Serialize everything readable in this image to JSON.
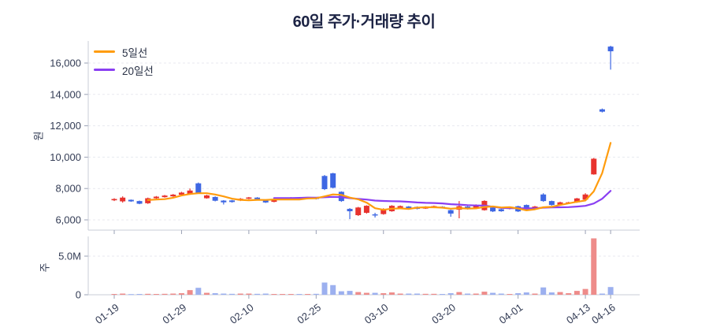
{
  "title": "60일 주가·거래량 추이",
  "legend": {
    "ma5": "5일선",
    "ma20": "20일선"
  },
  "axes": {
    "price_title": "원",
    "volume_title": "주",
    "price_tick_labels": [
      "6,000",
      "8,000",
      "10,000",
      "12,000",
      "14,000",
      "16,000"
    ],
    "volume_tick_labels": [
      "0",
      "5.0M"
    ],
    "x_tick_labels": [
      "01-19",
      "01-29",
      "02-10",
      "02-25",
      "03-10",
      "03-20",
      "04-01",
      "04-13",
      "04-16"
    ]
  },
  "colors": {
    "up": "#e8332e",
    "down": "#3e67e3",
    "vol_up": "#ee8c8a",
    "vol_down": "#9cb0ef",
    "ma5": "#ff9c0d",
    "ma20": "#8a3ff2",
    "grid": "#e8e9ef",
    "axis": "#c9cdd7",
    "tick": "#9aa0b4",
    "label": "#333c55",
    "title": "#1c2344"
  },
  "chart_data": [
    {
      "type": "candlestick",
      "title": "60일 주가·거래량 추이",
      "ylabel": "원",
      "ylim": [
        5350,
        17400
      ],
      "yticks": [
        6000,
        8000,
        10000,
        12000,
        14000,
        16000
      ],
      "ytick_labels": [
        "6,000",
        "8,000",
        "10,000",
        "12,000",
        "14,000",
        "16,000"
      ],
      "x_tick_positions": [
        0,
        8,
        16,
        24,
        32,
        40,
        48,
        56,
        59
      ],
      "x_tick_labels": [
        "01-19",
        "01-29",
        "02-10",
        "02-25",
        "03-10",
        "03-20",
        "04-01",
        "04-13",
        "04-16"
      ],
      "grid": "horizontal-dashed",
      "legend_position": "top-left-inside",
      "series": [
        {
          "name": "5일선",
          "derived": "moving-average-of-close",
          "window": 5,
          "color": "#ff9c0d"
        },
        {
          "name": "20일선",
          "derived": "moving-average-of-close",
          "window": 20,
          "color": "#8a3ff2"
        }
      ],
      "open": [
        7250,
        7180,
        7280,
        7200,
        7060,
        7380,
        7450,
        7500,
        7600,
        7640,
        8330,
        7380,
        7460,
        7230,
        7240,
        7230,
        7350,
        7420,
        7260,
        7150,
        7300,
        7370,
        7420,
        7350,
        7400,
        8800,
        8970,
        7790,
        6700,
        6300,
        6450,
        6350,
        6370,
        6550,
        6750,
        6850,
        6830,
        6720,
        6780,
        6840,
        6620,
        6650,
        6850,
        6780,
        6620,
        6790,
        6680,
        6700,
        6870,
        6950,
        6750,
        7620,
        7200,
        6950,
        7050,
        7120,
        7290,
        8900,
        13050,
        17050
      ],
      "high": [
        7380,
        7500,
        7300,
        7230,
        7420,
        7520,
        7590,
        7650,
        7790,
        8000,
        8380,
        7600,
        7500,
        7260,
        7270,
        7390,
        7460,
        7450,
        7290,
        7320,
        7390,
        7450,
        7440,
        7450,
        7430,
        8860,
        9000,
        7820,
        6750,
        6830,
        6930,
        6450,
        6740,
        6940,
        6920,
        6880,
        6860,
        6870,
        6910,
        6870,
        6650,
        7200,
        6880,
        6990,
        7250,
        6820,
        6710,
        6840,
        6900,
        6980,
        6890,
        7700,
        7230,
        7160,
        7150,
        7400,
        7700,
        9950,
        13100,
        17100
      ],
      "low": [
        7200,
        7100,
        7150,
        7000,
        7020,
        7340,
        7420,
        7470,
        7570,
        7600,
        7660,
        7350,
        7180,
        6980,
        7100,
        7200,
        7320,
        7300,
        7080,
        7120,
        7270,
        7340,
        7310,
        7320,
        7300,
        7900,
        8000,
        7150,
        6050,
        6250,
        6400,
        6150,
        6330,
        6520,
        6700,
        6690,
        6670,
        6700,
        6750,
        6730,
        6200,
        6100,
        6660,
        6750,
        6590,
        6500,
        6520,
        6670,
        6500,
        6580,
        6720,
        7150,
        6910,
        6920,
        7020,
        7090,
        7260,
        8880,
        12850,
        15580
      ],
      "close": [
        7330,
        7420,
        7180,
        7030,
        7380,
        7480,
        7550,
        7610,
        7740,
        7870,
        7710,
        7560,
        7220,
        7120,
        7140,
        7350,
        7430,
        7330,
        7110,
        7290,
        7360,
        7420,
        7340,
        7420,
        7340,
        7960,
        8050,
        7200,
        6550,
        6790,
        6900,
        6280,
        6700,
        6900,
        6880,
        6720,
        6700,
        6830,
        6880,
        6760,
        6400,
        6870,
        6700,
        6950,
        7210,
        6540,
        6550,
        6800,
        6540,
        6620,
        6850,
        7200,
        6950,
        7120,
        7120,
        7370,
        7620,
        9900,
        12900,
        16750
      ]
    },
    {
      "type": "bar",
      "ylabel": "주",
      "ylim": [
        0,
        7.6
      ],
      "yticks": [
        {
          "value": 0,
          "label": "0"
        },
        {
          "value": 5,
          "label": "5.0M"
        }
      ],
      "unit": "millions of shares",
      "color_rule": "red if close >= open else blue",
      "values_millions": [
        0.1,
        0.15,
        0.08,
        0.1,
        0.12,
        0.1,
        0.12,
        0.15,
        0.2,
        0.6,
        0.9,
        0.25,
        0.2,
        0.15,
        0.12,
        0.15,
        0.15,
        0.12,
        0.15,
        0.1,
        0.1,
        0.1,
        0.1,
        0.1,
        0.12,
        1.58,
        1.25,
        0.45,
        0.5,
        0.35,
        0.25,
        0.25,
        0.2,
        0.3,
        0.15,
        0.15,
        0.15,
        0.12,
        0.12,
        0.1,
        0.2,
        0.35,
        0.15,
        0.15,
        0.4,
        0.25,
        0.15,
        0.1,
        0.2,
        0.3,
        0.15,
        0.95,
        0.3,
        0.35,
        0.2,
        0.5,
        0.75,
        7.3,
        0.15,
        1.0
      ]
    }
  ]
}
